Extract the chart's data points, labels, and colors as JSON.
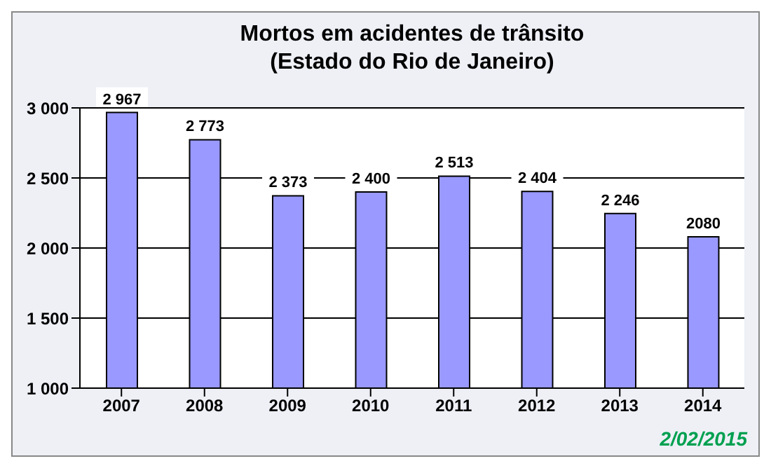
{
  "chart_data": {
    "type": "bar",
    "title": "Mortos em acidentes de trânsito (Estado do Rio de Janeiro)",
    "categories": [
      "2007",
      "2008",
      "2009",
      "2010",
      "2011",
      "2012",
      "2013",
      "2014"
    ],
    "values": [
      2967,
      2773,
      2373,
      2400,
      2513,
      2404,
      2246,
      2080
    ],
    "value_labels": [
      "2 967",
      "2 773",
      "2 373",
      "2 400",
      "2 513",
      "2 404",
      "2 246",
      "2080"
    ],
    "color": "#9999ff",
    "ylim": [
      1000,
      3000
    ],
    "yticks": [
      {
        "value": 1000,
        "label": "1 000"
      },
      {
        "value": 1500,
        "label": "1 500"
      },
      {
        "value": 2000,
        "label": "2 000"
      },
      {
        "value": 2500,
        "label": "2 500"
      },
      {
        "value": 3000,
        "label": "3 000"
      }
    ],
    "grid": "y",
    "annotations": [
      "2/02/2015"
    ]
  }
}
